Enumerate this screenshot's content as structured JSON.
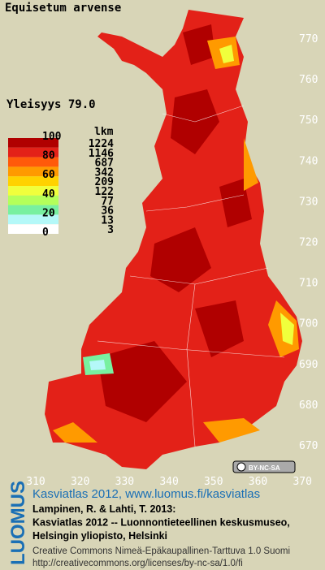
{
  "title": "Equisetum arvense",
  "frequency": "Yleisyys 79.0",
  "legend": {
    "scale_labels": [
      "100",
      "80",
      "60",
      "40",
      "20",
      "0"
    ],
    "count_header": "lkm",
    "counts": [
      1224,
      1146,
      687,
      342,
      209,
      122,
      77,
      36,
      13,
      3
    ],
    "colors": [
      "#b00000",
      "#e32118",
      "#ff5a0a",
      "#ff9a00",
      "#ffd200",
      "#f0ff3c",
      "#b4ff5a",
      "#78f0a0",
      "#b4f8f8",
      "#ffffff"
    ]
  },
  "map": {
    "yticks": [
      "770",
      "760",
      "750",
      "740",
      "730",
      "720",
      "710",
      "700",
      "690",
      "680",
      "670"
    ],
    "xticks": [
      "310",
      "320",
      "330",
      "340",
      "350",
      "360",
      "370"
    ]
  },
  "license_badge": "BY-NC-SA",
  "footer": {
    "logo": "LUOMUS",
    "link": "Kasviatlas 2012, www.luomus.fi/kasviatlas",
    "citation": [
      "Lampinen, R. & Lahti, T. 2013:",
      "Kasviatlas 2012 -- Luonnontieteellinen keskusmuseo,",
      "Helsingin yliopisto, Helsinki"
    ],
    "license": [
      "Creative Commons Nimeä-Epäkaupallinen-Tarttuva 1.0 Suomi",
      "http://creativecommons.org/licenses/by-nc-sa/1.0/fi"
    ]
  }
}
